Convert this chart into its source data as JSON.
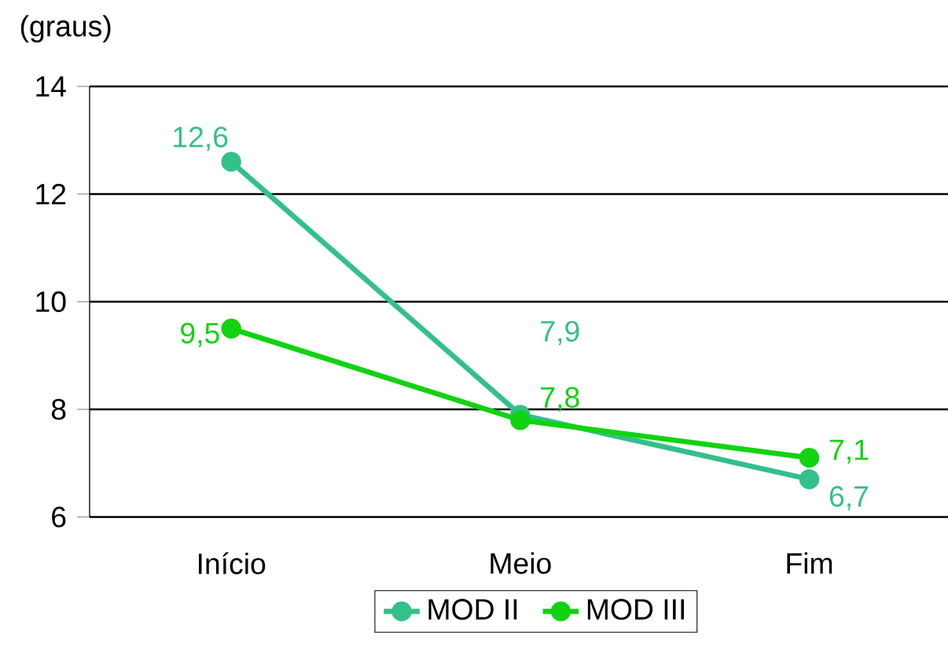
{
  "chart_data": {
    "type": "line",
    "ylabel": "(graus)",
    "categories": [
      "Início",
      "Meio",
      "Fim"
    ],
    "series": [
      {
        "name": "MOD II",
        "color": "#33c08a",
        "values": [
          12.6,
          7.9,
          6.7
        ],
        "value_labels": [
          "12,6",
          "7,9",
          "6,7"
        ]
      },
      {
        "name": "MOD III",
        "color": "#11d311",
        "values": [
          9.5,
          7.8,
          7.1
        ],
        "value_labels": [
          "9,5",
          "7,8",
          "7,1"
        ]
      }
    ],
    "ylim": [
      6,
      14
    ],
    "yticks": [
      6,
      8,
      10,
      12,
      14
    ],
    "grid": "y",
    "legend": "bottom",
    "marker": "circle",
    "line_style": "solid"
  }
}
